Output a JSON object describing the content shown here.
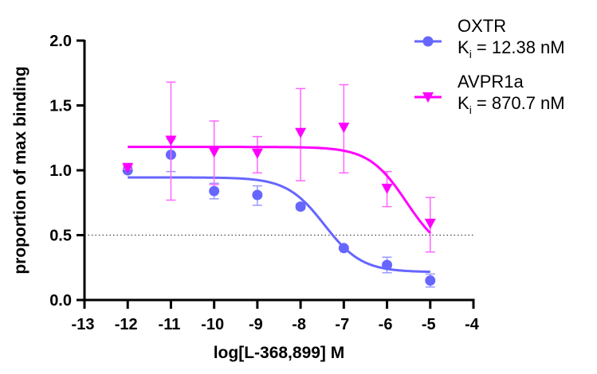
{
  "chart_data": {
    "type": "scatter",
    "title": "",
    "xlabel": "log[L-368,899] M",
    "ylabel": "proportion of max binding",
    "xlim": [
      -13,
      -4
    ],
    "ylim": [
      0,
      2.0
    ],
    "xticks": [
      -13,
      -12,
      -11,
      -10,
      -9,
      -8,
      -7,
      -6,
      -5,
      -4
    ],
    "xtick_labels": [
      "-13",
      "-12",
      "-11",
      "-10",
      "-9",
      "-8",
      "-7",
      "-6",
      "-5",
      "-4"
    ],
    "yticks": [
      0,
      0.5,
      1.0,
      1.5,
      2.0
    ],
    "ytick_labels": [
      "0.0",
      "0.5",
      "1.0",
      "1.5",
      "2.0"
    ],
    "grid": false,
    "legend_position": "top-right",
    "reference_line": {
      "y": 0.5,
      "style": "dotted"
    },
    "series": [
      {
        "name": "OXTR",
        "legend_sub": "K",
        "legend_subscript": "i",
        "legend_value": " = 12.38 nM",
        "color": "#6666ff",
        "marker": "circle",
        "x": [
          -12,
          -11,
          -10,
          -9,
          -8,
          -7,
          -6,
          -5
        ],
        "y": [
          1.0,
          1.12,
          0.84,
          0.81,
          0.72,
          0.4,
          0.27,
          0.15
        ],
        "err_high": [
          1.0,
          1.24,
          0.9,
          0.88,
          0.74,
          0.41,
          0.33,
          0.2
        ],
        "err_low": [
          1.0,
          0.99,
          0.78,
          0.73,
          0.7,
          0.39,
          0.21,
          0.1
        ],
        "fit": {
          "top": 0.945,
          "bottom": 0.215,
          "logIC50": -7.45,
          "hill": -1.0
        }
      },
      {
        "name": "AVPR1a",
        "legend_sub": "K",
        "legend_subscript": "i",
        "legend_value": " = 870.7 nM",
        "color": "#ff00ff",
        "marker": "triangle-down",
        "x": [
          -12,
          -11,
          -10,
          -9,
          -8,
          -7,
          -6,
          -5
        ],
        "y": [
          1.02,
          1.23,
          1.14,
          1.13,
          1.29,
          1.33,
          0.86,
          0.59
        ],
        "err_high": [
          1.03,
          1.68,
          1.38,
          1.26,
          1.63,
          1.66,
          0.99,
          0.79
        ],
        "err_low": [
          1.01,
          0.77,
          0.89,
          0.98,
          0.92,
          0.98,
          0.72,
          0.37
        ],
        "fit": {
          "top": 1.18,
          "bottom": 0.33,
          "logIC50": -5.55,
          "hill": -1.0
        }
      }
    ]
  }
}
